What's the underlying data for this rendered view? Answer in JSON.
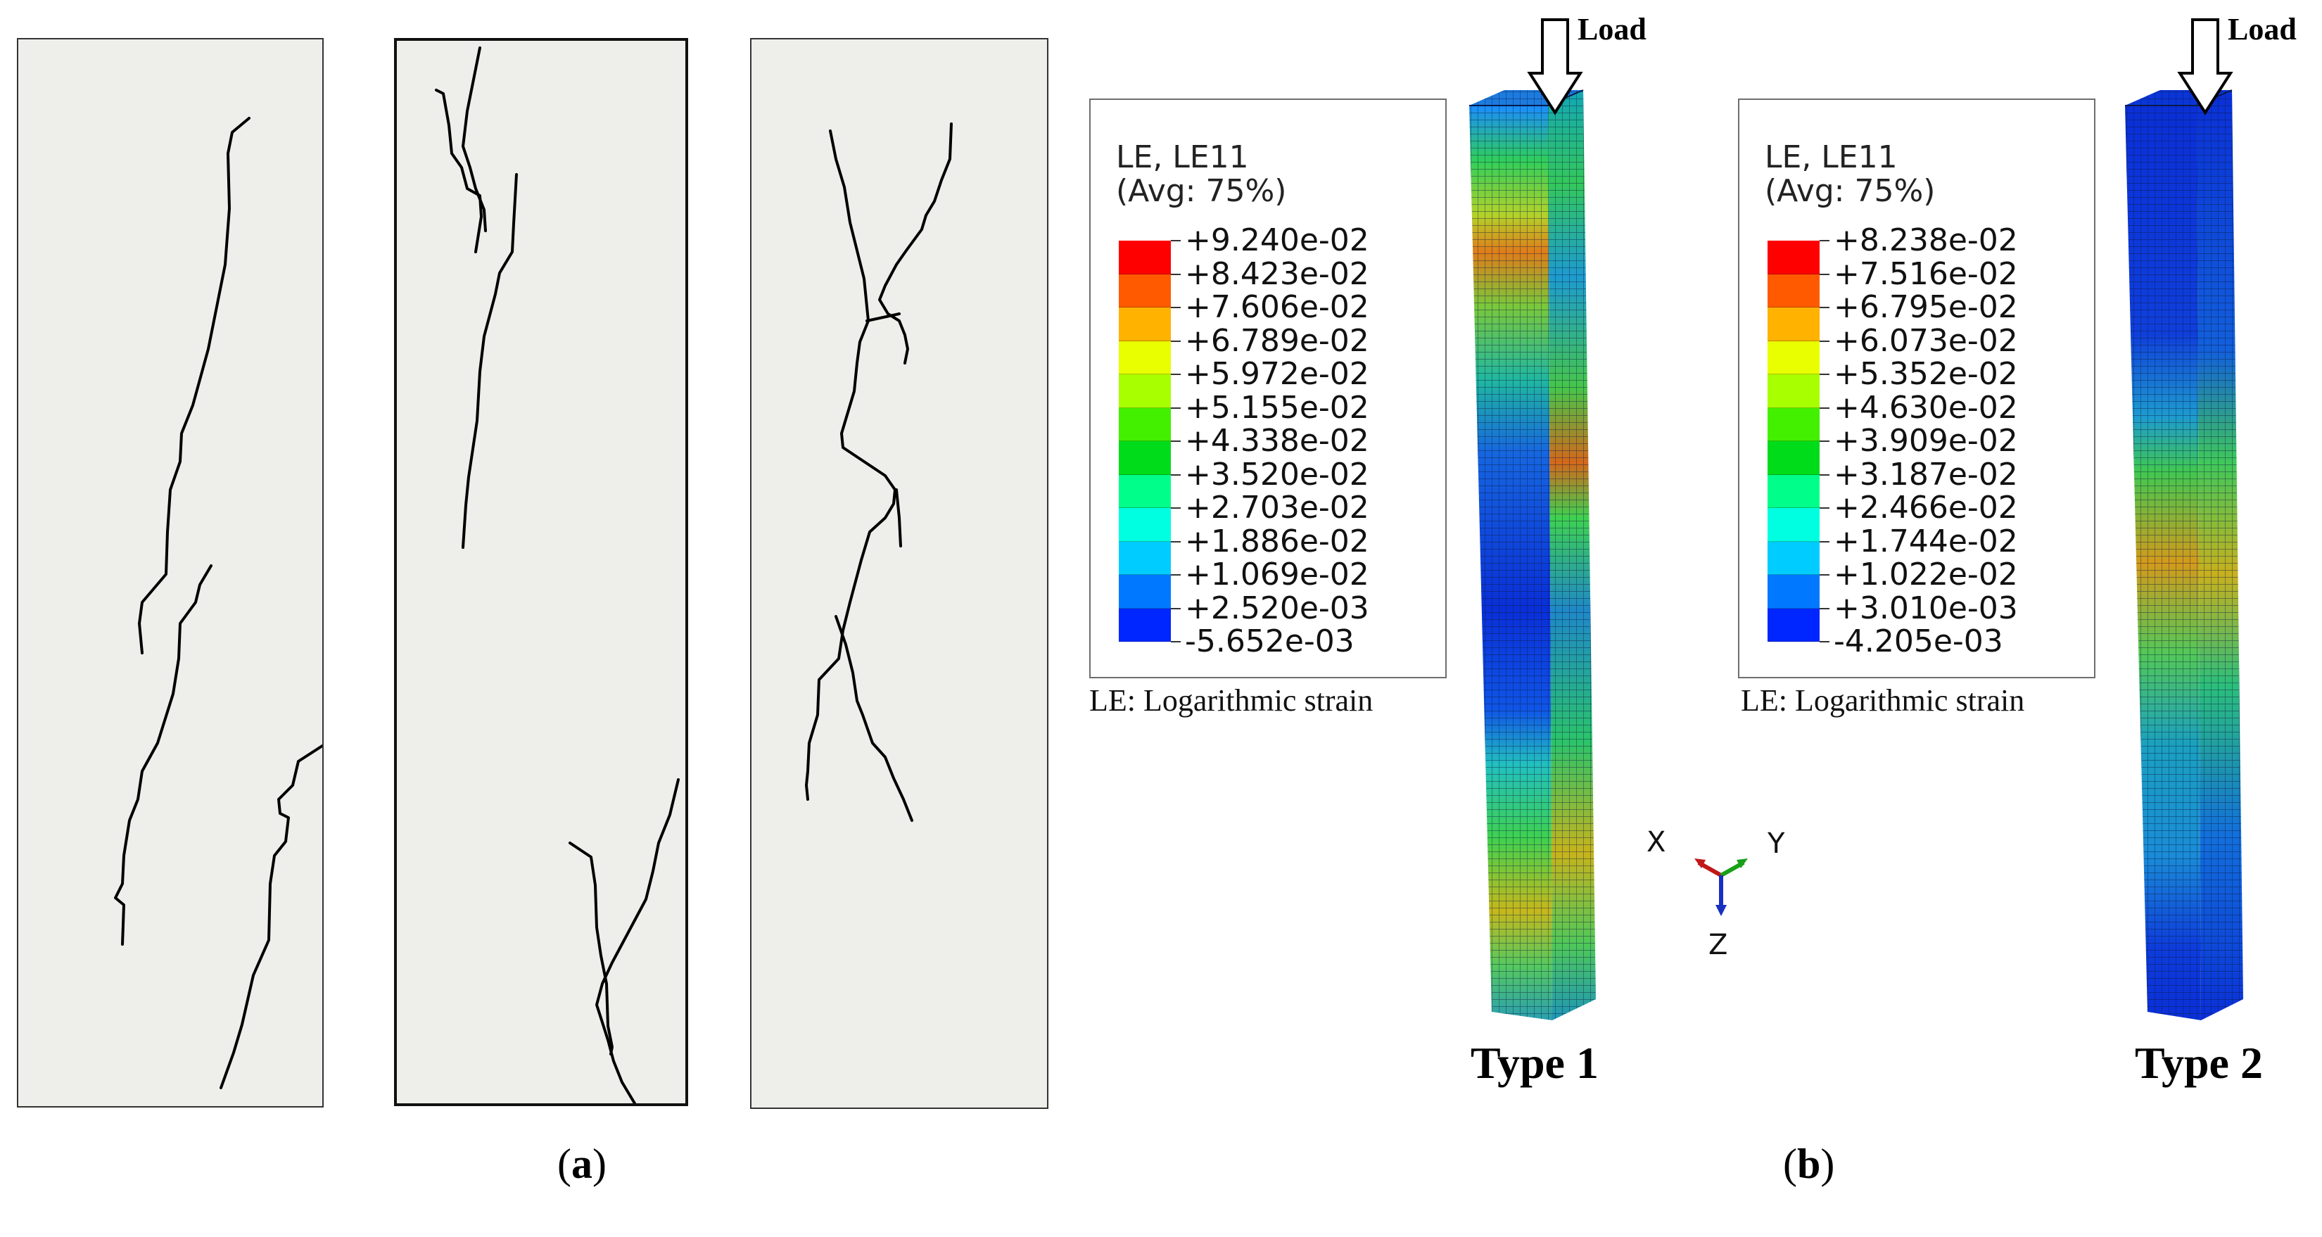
{
  "panel_a": {
    "caption_open": "(",
    "caption_letter": "a",
    "caption_close": ")"
  },
  "panel_b": {
    "caption_open": "(",
    "caption_letter": "b",
    "caption_close": ")",
    "type1": {
      "label": "Type 1",
      "load_label": "Load",
      "legend_title": "LE, LE11",
      "legend_avg": "(Avg: 75%)",
      "legend_values": [
        "+9.240e-02",
        "+8.423e-02",
        "+7.606e-02",
        "+6.789e-02",
        "+5.972e-02",
        "+5.155e-02",
        "+4.338e-02",
        "+3.520e-02",
        "+2.703e-02",
        "+1.886e-02",
        "+1.069e-02",
        "+2.520e-03",
        "-5.652e-03"
      ],
      "legend_footer": "LE: Logarithmic strain"
    },
    "type2": {
      "label": "Type 2",
      "load_label": "Load",
      "legend_title": "LE, LE11",
      "legend_avg": "(Avg: 75%)",
      "legend_values": [
        "+8.238e-02",
        "+7.516e-02",
        "+6.795e-02",
        "+6.073e-02",
        "+5.352e-02",
        "+4.630e-02",
        "+3.909e-02",
        "+3.187e-02",
        "+2.466e-02",
        "+1.744e-02",
        "+1.022e-02",
        "+3.010e-03",
        "-4.205e-03"
      ],
      "legend_footer": "LE: Logarithmic strain"
    },
    "triad": {
      "x": "X",
      "y": "Y",
      "z": "Z"
    },
    "colormap": [
      "#ff0000",
      "#ff5a00",
      "#ffb200",
      "#e9ff00",
      "#a8ff00",
      "#42f000",
      "#00dc1a",
      "#00ff8a",
      "#00ffe0",
      "#00ccff",
      "#0078ff",
      "#0026ff"
    ]
  }
}
